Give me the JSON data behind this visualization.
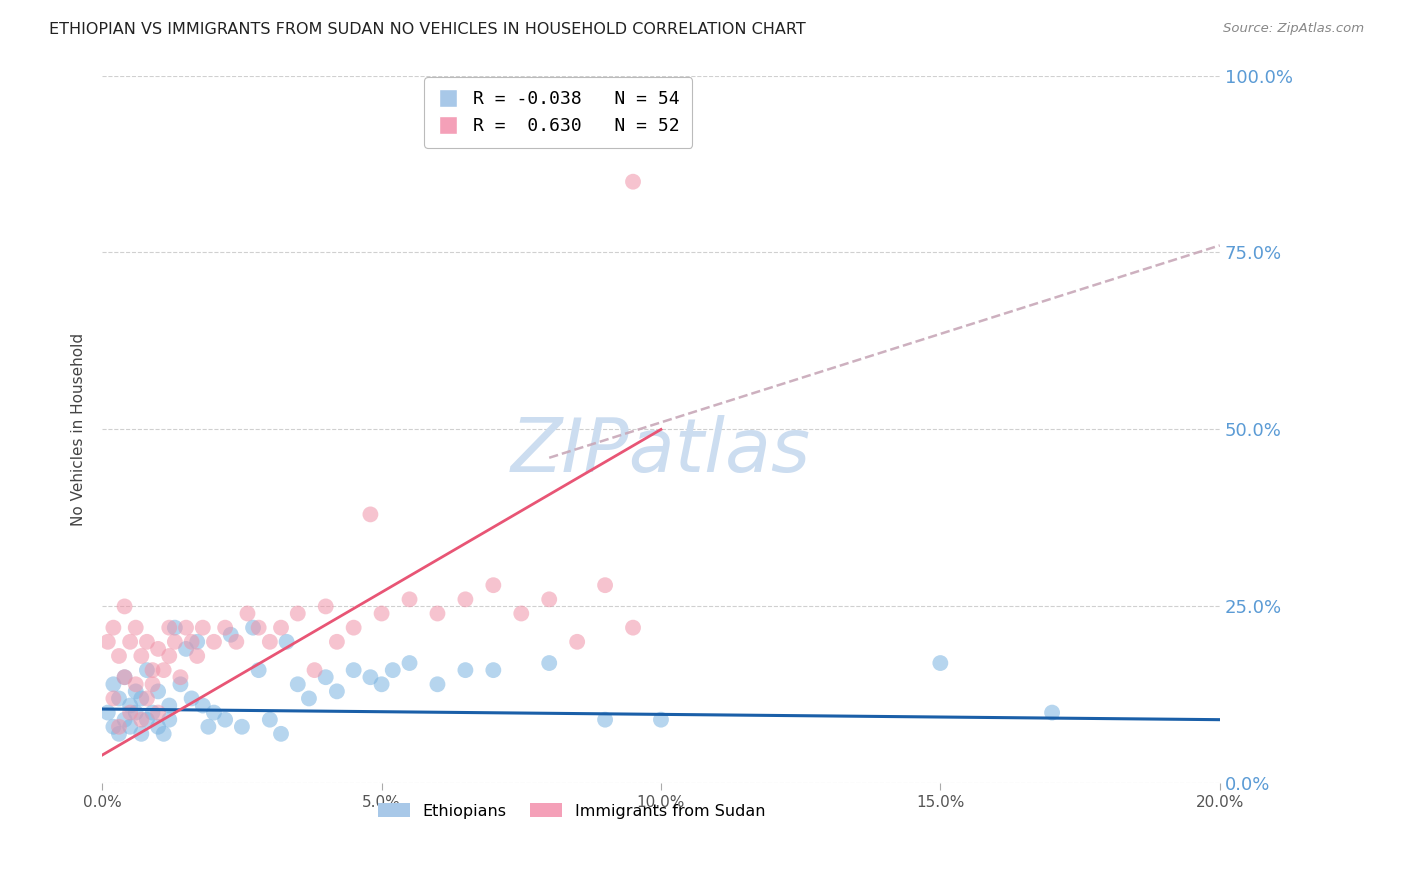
{
  "title": "ETHIOPIAN VS IMMIGRANTS FROM SUDAN NO VEHICLES IN HOUSEHOLD CORRELATION CHART",
  "source": "Source: ZipAtlas.com",
  "ylabel": "No Vehicles in Household",
  "xlim": [
    0.0,
    0.2
  ],
  "ylim": [
    0.0,
    1.0
  ],
  "xticks": [
    0.0,
    0.05,
    0.1,
    0.15,
    0.2
  ],
  "xtick_labels": [
    "0.0%",
    "5.0%",
    "10.0%",
    "15.0%",
    "20.0%"
  ],
  "yticks": [
    0.0,
    0.25,
    0.5,
    0.75,
    1.0
  ],
  "ytick_labels": [
    "0.0%",
    "25.0%",
    "50.0%",
    "75.0%",
    "100.0%"
  ],
  "blue_color": "#7ab3e0",
  "pink_color": "#f093a8",
  "blue_line_color": "#1a5fa8",
  "pink_line_color": "#e85575",
  "dashed_line_color": "#c8a8b8",
  "watermark": "ZIPatlas",
  "watermark_color": "#ccddf0",
  "background_color": "#ffffff",
  "R_blue": -0.038,
  "N_blue": 54,
  "R_pink": 0.63,
  "N_pink": 52,
  "blue_trend": [
    0.0,
    0.2,
    0.105,
    0.09
  ],
  "pink_trend_solid": [
    0.0,
    0.1,
    0.04,
    0.5
  ],
  "pink_trend_dashed": [
    0.08,
    0.2,
    0.46,
    0.76
  ],
  "ethiopians_x": [
    0.001,
    0.002,
    0.002,
    0.003,
    0.003,
    0.004,
    0.004,
    0.005,
    0.005,
    0.006,
    0.006,
    0.007,
    0.007,
    0.008,
    0.008,
    0.009,
    0.01,
    0.01,
    0.011,
    0.012,
    0.012,
    0.013,
    0.014,
    0.015,
    0.016,
    0.017,
    0.018,
    0.019,
    0.02,
    0.022,
    0.023,
    0.025,
    0.027,
    0.028,
    0.03,
    0.032,
    0.033,
    0.035,
    0.037,
    0.04,
    0.042,
    0.045,
    0.048,
    0.05,
    0.052,
    0.055,
    0.06,
    0.065,
    0.07,
    0.08,
    0.09,
    0.1,
    0.15,
    0.17
  ],
  "ethiopians_y": [
    0.1,
    0.08,
    0.14,
    0.07,
    0.12,
    0.09,
    0.15,
    0.11,
    0.08,
    0.13,
    0.1,
    0.07,
    0.12,
    0.09,
    0.16,
    0.1,
    0.08,
    0.13,
    0.07,
    0.11,
    0.09,
    0.22,
    0.14,
    0.19,
    0.12,
    0.2,
    0.11,
    0.08,
    0.1,
    0.09,
    0.21,
    0.08,
    0.22,
    0.16,
    0.09,
    0.07,
    0.2,
    0.14,
    0.12,
    0.15,
    0.13,
    0.16,
    0.15,
    0.14,
    0.16,
    0.17,
    0.14,
    0.16,
    0.16,
    0.17,
    0.09,
    0.09,
    0.17,
    0.1
  ],
  "sudan_x": [
    0.001,
    0.002,
    0.002,
    0.003,
    0.003,
    0.004,
    0.004,
    0.005,
    0.005,
    0.006,
    0.006,
    0.007,
    0.007,
    0.008,
    0.008,
    0.009,
    0.009,
    0.01,
    0.01,
    0.011,
    0.012,
    0.012,
    0.013,
    0.014,
    0.015,
    0.016,
    0.017,
    0.018,
    0.02,
    0.022,
    0.024,
    0.026,
    0.028,
    0.03,
    0.032,
    0.035,
    0.038,
    0.04,
    0.042,
    0.045,
    0.048,
    0.05,
    0.055,
    0.06,
    0.065,
    0.07,
    0.075,
    0.08,
    0.085,
    0.09,
    0.095,
    0.095
  ],
  "sudan_y": [
    0.2,
    0.12,
    0.22,
    0.08,
    0.18,
    0.15,
    0.25,
    0.1,
    0.2,
    0.14,
    0.22,
    0.09,
    0.18,
    0.12,
    0.2,
    0.16,
    0.14,
    0.19,
    0.1,
    0.16,
    0.18,
    0.22,
    0.2,
    0.15,
    0.22,
    0.2,
    0.18,
    0.22,
    0.2,
    0.22,
    0.2,
    0.24,
    0.22,
    0.2,
    0.22,
    0.24,
    0.16,
    0.25,
    0.2,
    0.22,
    0.38,
    0.24,
    0.26,
    0.24,
    0.26,
    0.28,
    0.24,
    0.26,
    0.2,
    0.28,
    0.22,
    0.85
  ]
}
